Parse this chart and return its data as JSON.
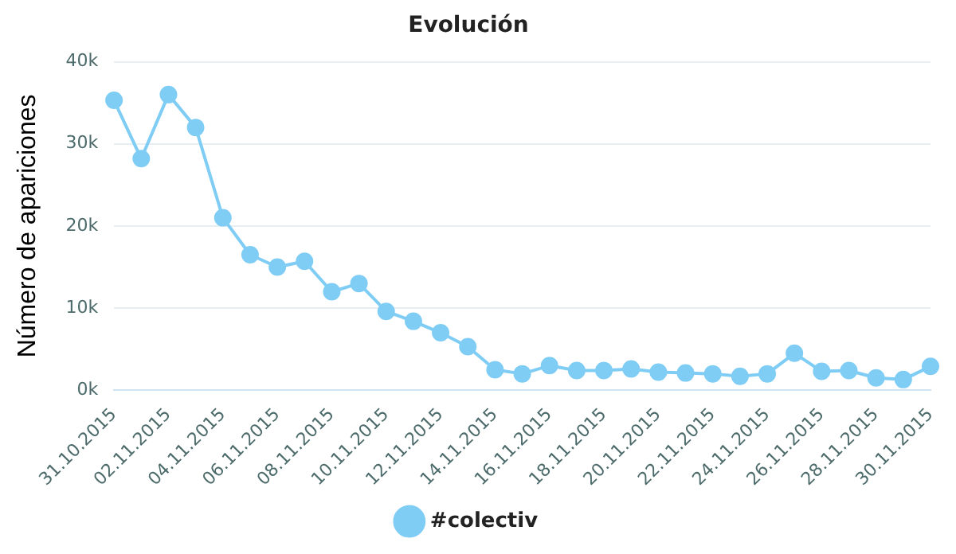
{
  "chart_data": {
    "type": "line",
    "title": "Evolución",
    "ylabel": "Número de apariciones",
    "categories": [
      "31.10.2015",
      null,
      "02.11.2015",
      null,
      "04.11.2015",
      null,
      "06.11.2015",
      null,
      "08.11.2015",
      null,
      "10.11.2015",
      null,
      "12.11.2015",
      null,
      "14.11.2015",
      null,
      "16.11.2015",
      null,
      "18.11.2015",
      null,
      "20.11.2015",
      null,
      "22.11.2015",
      null,
      "24.11.2015",
      null,
      "26.11.2015",
      null,
      "28.11.2015",
      null,
      "30.11.2015"
    ],
    "series": [
      {
        "name": "#colectiv",
        "color": "#7fcdf5",
        "values": [
          35300,
          28200,
          36000,
          32000,
          21000,
          16500,
          15000,
          15700,
          12000,
          13000,
          9600,
          8400,
          7000,
          5300,
          2500,
          2000,
          3000,
          2400,
          2400,
          2600,
          2200,
          2100,
          2000,
          1700,
          2000,
          4500,
          2300,
          2400,
          1500,
          1300,
          2900
        ]
      }
    ],
    "ylim": [
      0,
      40000
    ],
    "yticks": [
      {
        "value": 0,
        "label": "0k"
      },
      {
        "value": 10000,
        "label": "10k"
      },
      {
        "value": 20000,
        "label": "20k"
      },
      {
        "value": 30000,
        "label": "30k"
      },
      {
        "value": 40000,
        "label": "40k"
      }
    ],
    "grid": "y",
    "legend": "bottom",
    "marker": "circle",
    "line_style": "solid"
  }
}
